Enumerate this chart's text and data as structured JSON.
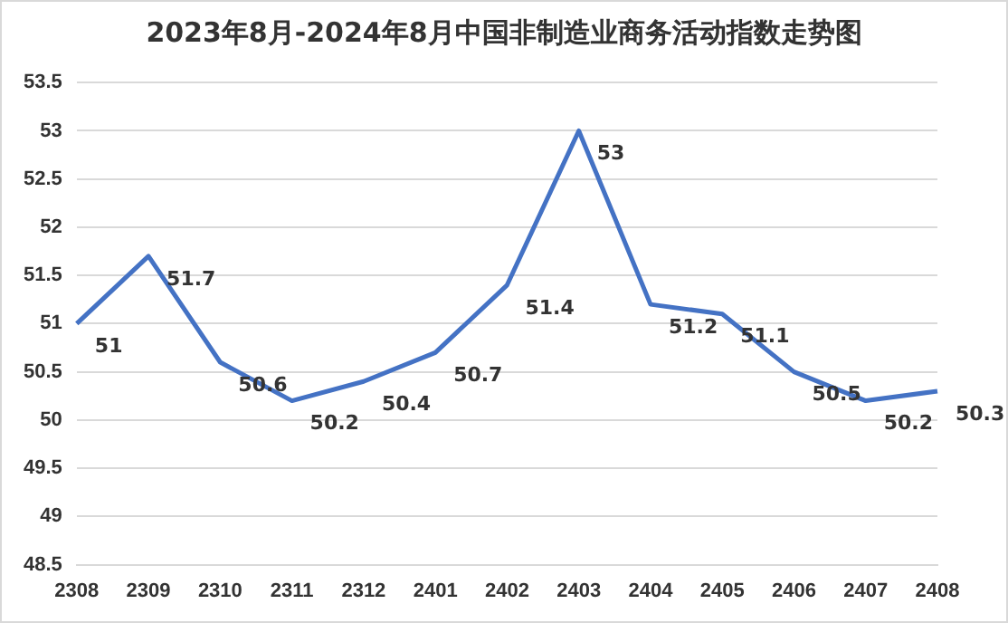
{
  "chart_data": {
    "type": "line",
    "title": "2023年8月-2024年8月中国非制造业商务活动指数走势图",
    "categories": [
      "2308",
      "2309",
      "2310",
      "2311",
      "2312",
      "2401",
      "2402",
      "2403",
      "2404",
      "2405",
      "2406",
      "2407",
      "2408"
    ],
    "series": [
      {
        "color": "#4472c4",
        "values": [
          51,
          51.7,
          50.6,
          50.2,
          50.4,
          50.7,
          51.4,
          53,
          51.2,
          51.1,
          50.5,
          50.2,
          50.3
        ]
      }
    ],
    "ylim": [
      48.5,
      53.5
    ],
    "yticks": [
      48.5,
      49,
      49.5,
      50,
      50.5,
      51,
      51.5,
      52,
      52.5,
      53,
      53.5
    ],
    "grid": "y",
    "legend": false,
    "marker": "none",
    "line_style": "solid",
    "data_labels": true
  }
}
